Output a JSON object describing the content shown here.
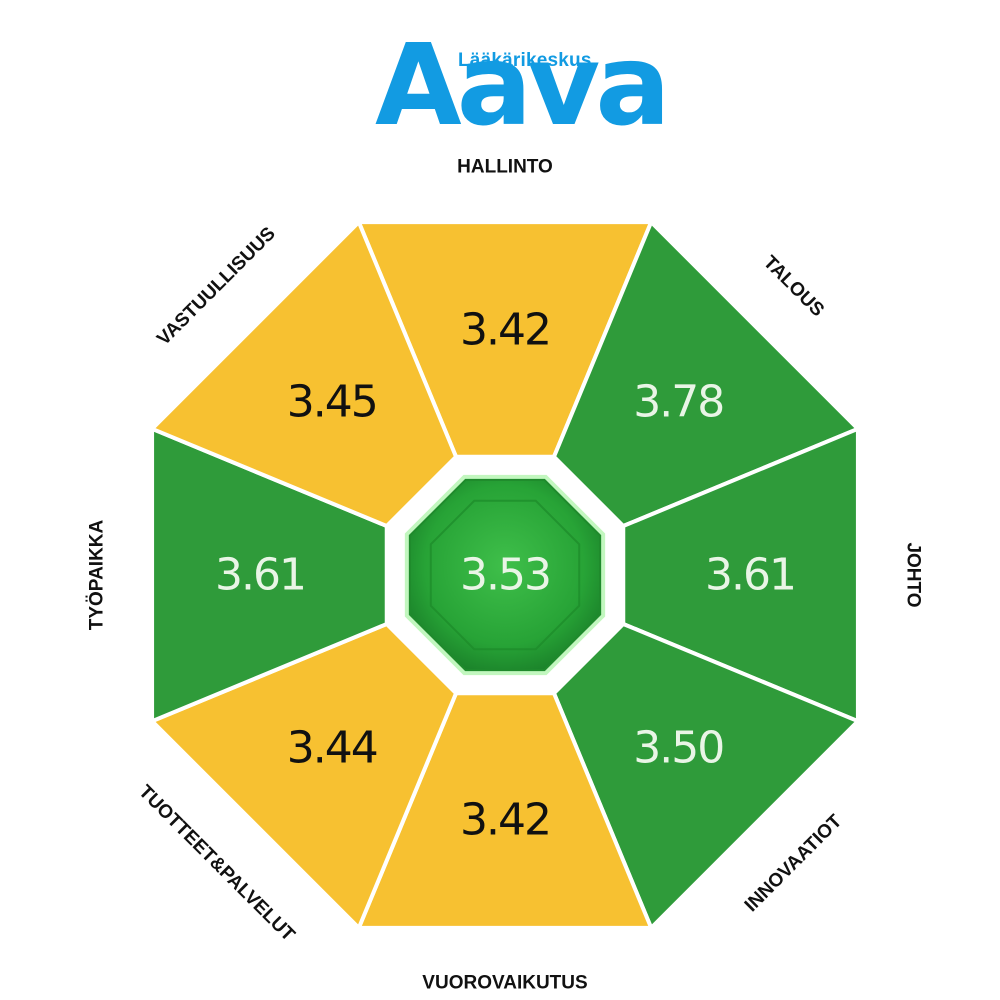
{
  "logo": {
    "subtitle": "Lääkärikeskus",
    "name": "Aava"
  },
  "colors": {
    "yellow": "#f7c131",
    "green": "#2f9b3a",
    "center_green": "#27a336",
    "dark_text": "#111111",
    "light_text": "#e9f5e6",
    "brand_blue": "#129be2"
  },
  "center": {
    "value": "3.53"
  },
  "segments": [
    {
      "label": "HALLINTO",
      "value": "3.42",
      "color": "yellow"
    },
    {
      "label": "TALOUS",
      "value": "3.78",
      "color": "green"
    },
    {
      "label": "JOHTO",
      "value": "3.61",
      "color": "green"
    },
    {
      "label": "INNOVAATIOT",
      "value": "3.50",
      "color": "green"
    },
    {
      "label": "VUOROVAIKUTUS",
      "value": "3.42",
      "color": "yellow"
    },
    {
      "label": "TUOTTEET&PALVELUT",
      "value": "3.44",
      "color": "yellow"
    },
    {
      "label": "TYÖPAIKKA",
      "value": "3.61",
      "color": "green"
    },
    {
      "label": "VASTUULLISUUS",
      "value": "3.45",
      "color": "yellow"
    }
  ]
}
